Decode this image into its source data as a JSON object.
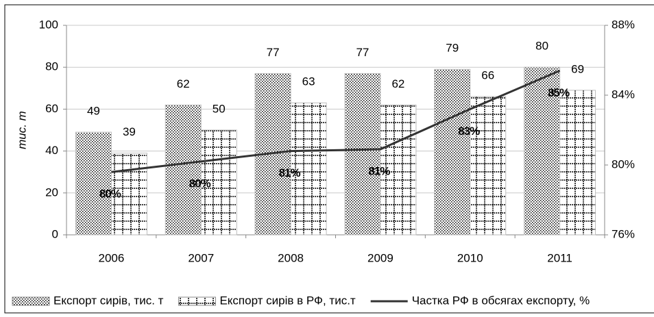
{
  "chart_data": {
    "type": "bar_line",
    "y_label": "тис. т",
    "categories": [
      "2006",
      "2007",
      "2008",
      "2009",
      "2010",
      "2011"
    ],
    "series": [
      {
        "name": "Експорт сирів, тис. т",
        "type": "bar",
        "color": "#000000",
        "pattern": "dots",
        "values": [
          49,
          62,
          77,
          77,
          79,
          80
        ]
      },
      {
        "name": "Експорт сирів в РФ, тис.т",
        "type": "bar",
        "color": "#000000",
        "pattern": "grid",
        "values": [
          39,
          50,
          63,
          62,
          66,
          69
        ]
      },
      {
        "name": "Частка РФ в обсягах експорту, %",
        "type": "line",
        "axis": "y2",
        "color": "#333333",
        "values": [
          79.6,
          80.2,
          80.8,
          80.9,
          83.2,
          85.4
        ],
        "value_labels": [
          "80%",
          "80%",
          "81%",
          "81%",
          "83%",
          "85%"
        ]
      }
    ],
    "ylim": [
      0,
      100
    ],
    "yticks": [
      0,
      20,
      40,
      60,
      80,
      100
    ],
    "y2lim": [
      76,
      88
    ],
    "y2ticks": [
      {
        "value": 76,
        "label": "76%"
      },
      {
        "value": 80,
        "label": "80%"
      },
      {
        "value": 84,
        "label": "84%"
      },
      {
        "value": 88,
        "label": "88%"
      }
    ],
    "grid": true,
    "legend": "bottom"
  }
}
